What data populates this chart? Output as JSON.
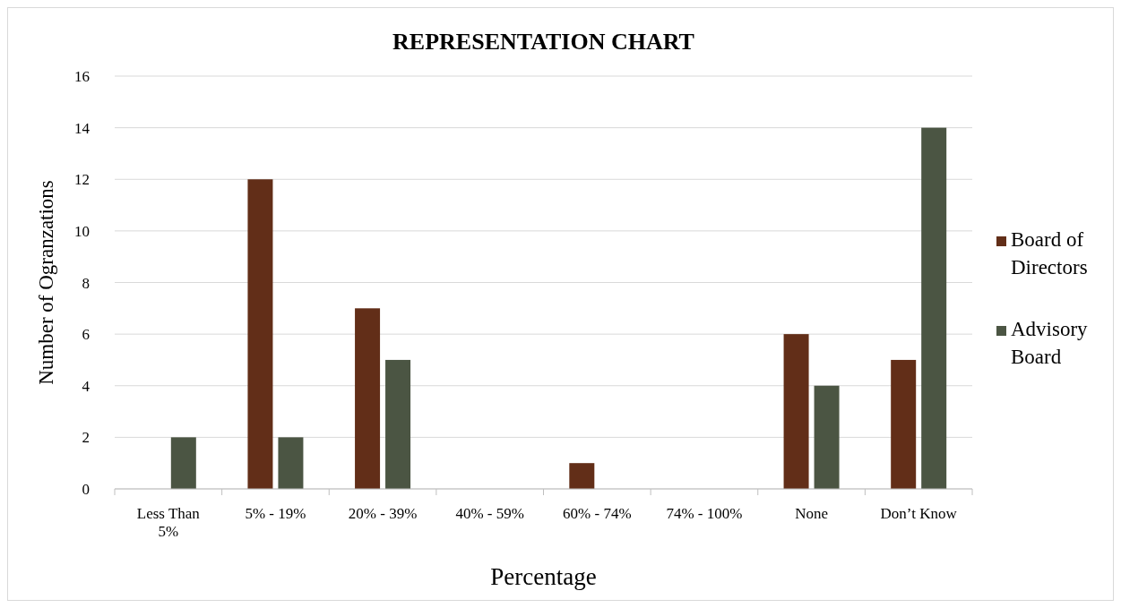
{
  "chart_data": {
    "type": "bar",
    "title": "REPRESENTATION CHART",
    "xlabel": "Percentage",
    "ylabel": "Number of Ogranzations",
    "categories": [
      "Less Than 5%",
      "5% - 19%",
      "20% - 39%",
      "40% - 59%",
      "60% - 74%",
      "74% - 100%",
      "None",
      "Don’t Know"
    ],
    "series": [
      {
        "name": "Board of Directors",
        "color": "#622e18",
        "values": [
          0,
          12,
          7,
          0,
          1,
          0,
          6,
          5
        ]
      },
      {
        "name": "Advisory Board",
        "color": "#4b5543",
        "values": [
          2,
          2,
          5,
          0,
          0,
          0,
          4,
          14
        ]
      }
    ],
    "ylim": [
      0,
      16
    ],
    "yticks": [
      0,
      2,
      4,
      6,
      8,
      10,
      12,
      14,
      16
    ],
    "grid": "y",
    "legend": "right"
  }
}
